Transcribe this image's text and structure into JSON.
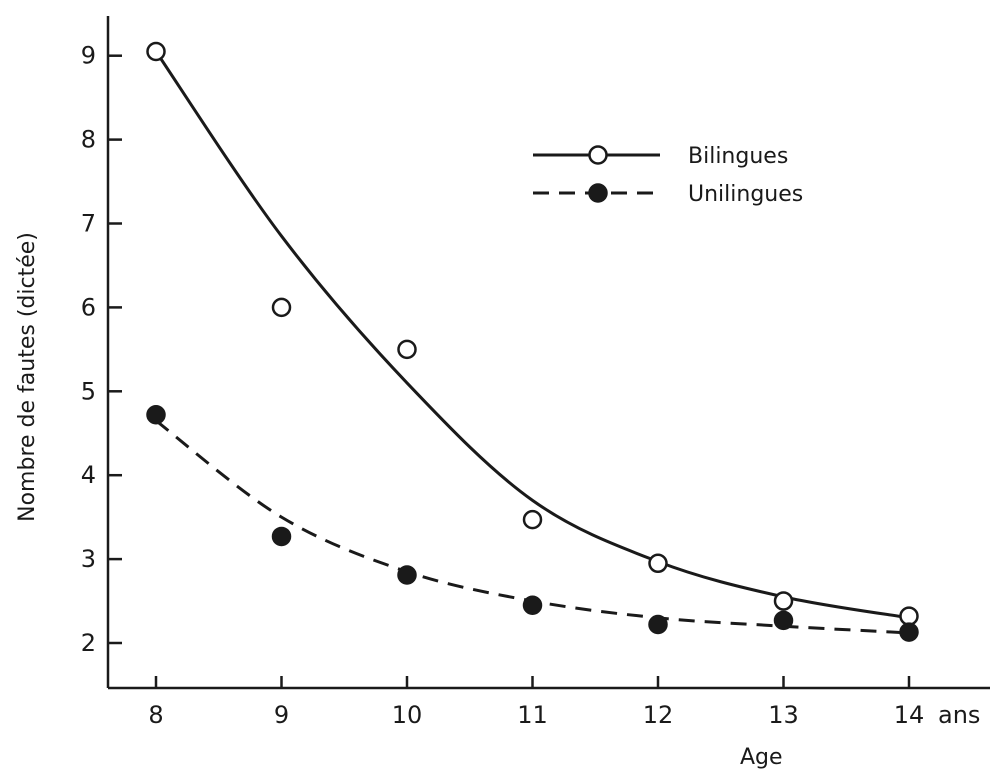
{
  "chart_data": {
    "type": "scatter",
    "title": "",
    "xlabel": "Age",
    "x_unit": "ans",
    "ylabel": "Nombre de fautes (dictée)",
    "xlim": [
      8,
      14
    ],
    "ylim": [
      1.6,
      9.2
    ],
    "x_ticks": [
      8,
      9,
      10,
      11,
      12,
      13,
      14
    ],
    "y_ticks": [
      2,
      3,
      4,
      5,
      6,
      7,
      8,
      9
    ],
    "grid": false,
    "legend_position": "top-right",
    "series": [
      {
        "name": "Bilingues",
        "marker": "open-circle",
        "line_style": "solid",
        "points": [
          {
            "x": 8,
            "y": 9.05
          },
          {
            "x": 9,
            "y": 6.0
          },
          {
            "x": 10,
            "y": 5.5
          },
          {
            "x": 11,
            "y": 3.47
          },
          {
            "x": 12,
            "y": 2.95
          },
          {
            "x": 13,
            "y": 2.5
          },
          {
            "x": 14,
            "y": 2.32
          }
        ],
        "fit_curve": [
          {
            "x": 8,
            "y": 9.05
          },
          {
            "x": 9,
            "y": 6.85
          },
          {
            "x": 10,
            "y": 5.1
          },
          {
            "x": 11,
            "y": 3.7
          },
          {
            "x": 12,
            "y": 2.97
          },
          {
            "x": 13,
            "y": 2.55
          },
          {
            "x": 14,
            "y": 2.3
          }
        ]
      },
      {
        "name": "Unilingues",
        "marker": "filled-circle",
        "line_style": "dashed",
        "points": [
          {
            "x": 8,
            "y": 4.72
          },
          {
            "x": 9,
            "y": 3.27
          },
          {
            "x": 10,
            "y": 2.81
          },
          {
            "x": 11,
            "y": 2.45
          },
          {
            "x": 12,
            "y": 2.22
          },
          {
            "x": 13,
            "y": 2.27
          },
          {
            "x": 14,
            "y": 2.13
          }
        ],
        "fit_curve": [
          {
            "x": 8,
            "y": 4.65
          },
          {
            "x": 9,
            "y": 3.5
          },
          {
            "x": 10,
            "y": 2.85
          },
          {
            "x": 11,
            "y": 2.5
          },
          {
            "x": 12,
            "y": 2.3
          },
          {
            "x": 13,
            "y": 2.2
          },
          {
            "x": 14,
            "y": 2.12
          }
        ]
      }
    ]
  }
}
